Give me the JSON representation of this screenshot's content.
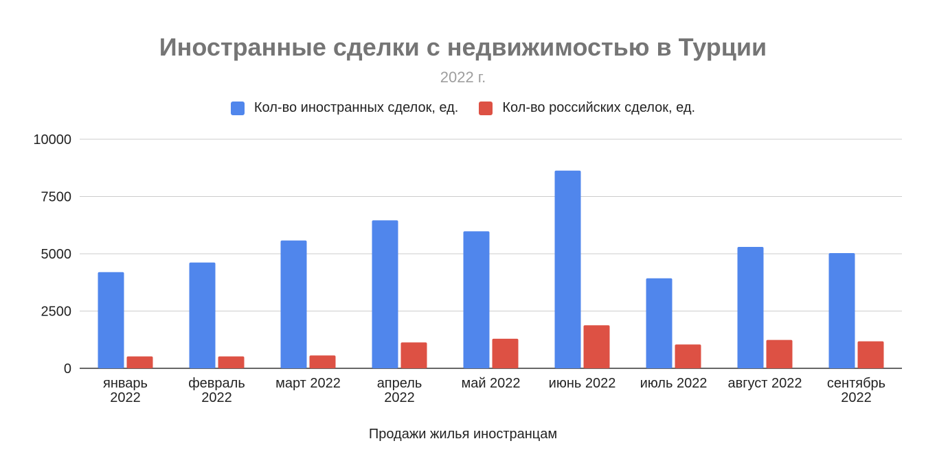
{
  "chart_data": {
    "type": "bar",
    "title": "Иностранные сделки с недвижимостью в Турции",
    "subtitle": "2022 г.",
    "xlabel": "Продажи жилья иностранцам",
    "ylabel": "",
    "ylim": [
      0,
      10000
    ],
    "yticks": [
      "10000",
      "7500",
      "5000",
      "2500",
      "0"
    ],
    "ytick_values": [
      10000,
      7500,
      5000,
      2500,
      0
    ],
    "grid": true,
    "legend_position": "top",
    "categories": [
      [
        "январь",
        "2022"
      ],
      [
        "февраль",
        "2022"
      ],
      [
        "март 2022"
      ],
      [
        "апрель",
        "2022"
      ],
      [
        "май 2022"
      ],
      [
        "июнь 2022"
      ],
      [
        "июль 2022"
      ],
      [
        "август 2022"
      ],
      [
        "сентябрь",
        "2022"
      ]
    ],
    "series": [
      {
        "name": "Кол-во иностранных сделок, ед.",
        "color": "#5086ec",
        "values": [
          4200,
          4620,
          5580,
          6460,
          5980,
          8630,
          3930,
          5300,
          5030
        ]
      },
      {
        "name": "Кол-во российских сделок, ед.",
        "color": "#dd5144",
        "values": [
          520,
          520,
          560,
          1130,
          1290,
          1880,
          1040,
          1240,
          1180
        ]
      }
    ]
  }
}
